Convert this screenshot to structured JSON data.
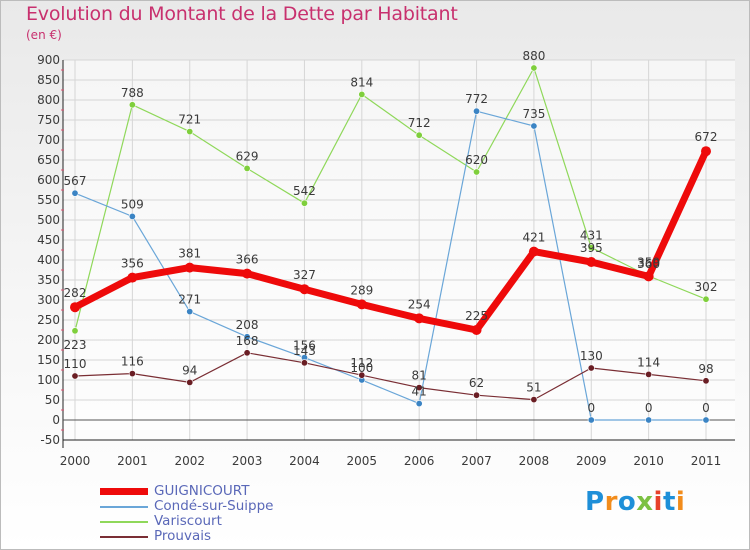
{
  "title": "Evolution du Montant de la Dette par Habitant",
  "unit": "(en €)",
  "logo": {
    "text": "Proxiti",
    "colors": [
      "#1e8fd8",
      "#f28c1b",
      "#1e8fd8",
      "#7cc142",
      "#e7402a",
      "#1e8fd8",
      "#f28c1b"
    ]
  },
  "chart_data": {
    "type": "line",
    "title": "Evolution du Montant de la Dette par Habitant",
    "subtitle": "(en €)",
    "xlabel": "",
    "ylabel": "",
    "x": [
      "2000",
      "2001",
      "2002",
      "2003",
      "2004",
      "2005",
      "2006",
      "2007",
      "2008",
      "2009",
      "2010",
      "2011"
    ],
    "ylim": [
      -50,
      900
    ],
    "yticks": [
      -50,
      0,
      50,
      100,
      150,
      200,
      250,
      300,
      350,
      400,
      450,
      500,
      550,
      600,
      650,
      700,
      750,
      800,
      850,
      900
    ],
    "grid": true,
    "legend_position": "bottom-left",
    "series": [
      {
        "name": "Variscourt",
        "color": "#7fcf3c",
        "line_color": "#8fd85a",
        "width": 1.2,
        "values": [
          223,
          788,
          721,
          629,
          542,
          814,
          712,
          620,
          880,
          431,
          360,
          302
        ]
      },
      {
        "name": "Condé-sur-Suippe",
        "color": "#3b84c4",
        "line_color": "#6aa6d8",
        "width": 1.2,
        "values": [
          567,
          509,
          271,
          208,
          156,
          100,
          41,
          772,
          735,
          0,
          0,
          0
        ]
      },
      {
        "name": "Prouvais",
        "color": "#6a1e24",
        "line_color": "#7a2e34",
        "width": 1.2,
        "values": [
          110,
          116,
          94,
          168,
          143,
          112,
          81,
          62,
          51,
          130,
          114,
          98
        ]
      },
      {
        "name": "GUIGNICOURT",
        "color": "#ee0a0a",
        "line_color": "#ee0a0a",
        "width": 7,
        "values": [
          282,
          356,
          381,
          366,
          327,
          289,
          254,
          225,
          421,
          395,
          359,
          672
        ]
      }
    ]
  },
  "legend": [
    {
      "label": "GUIGNICOURT",
      "color": "#ee0a0a",
      "thickness": 7
    },
    {
      "label": "Condé-sur-Suippe",
      "color": "#6aa6d8",
      "thickness": 2
    },
    {
      "label": "Variscourt",
      "color": "#8fd85a",
      "thickness": 2
    },
    {
      "label": "Prouvais",
      "color": "#7a2e34",
      "thickness": 2
    }
  ]
}
